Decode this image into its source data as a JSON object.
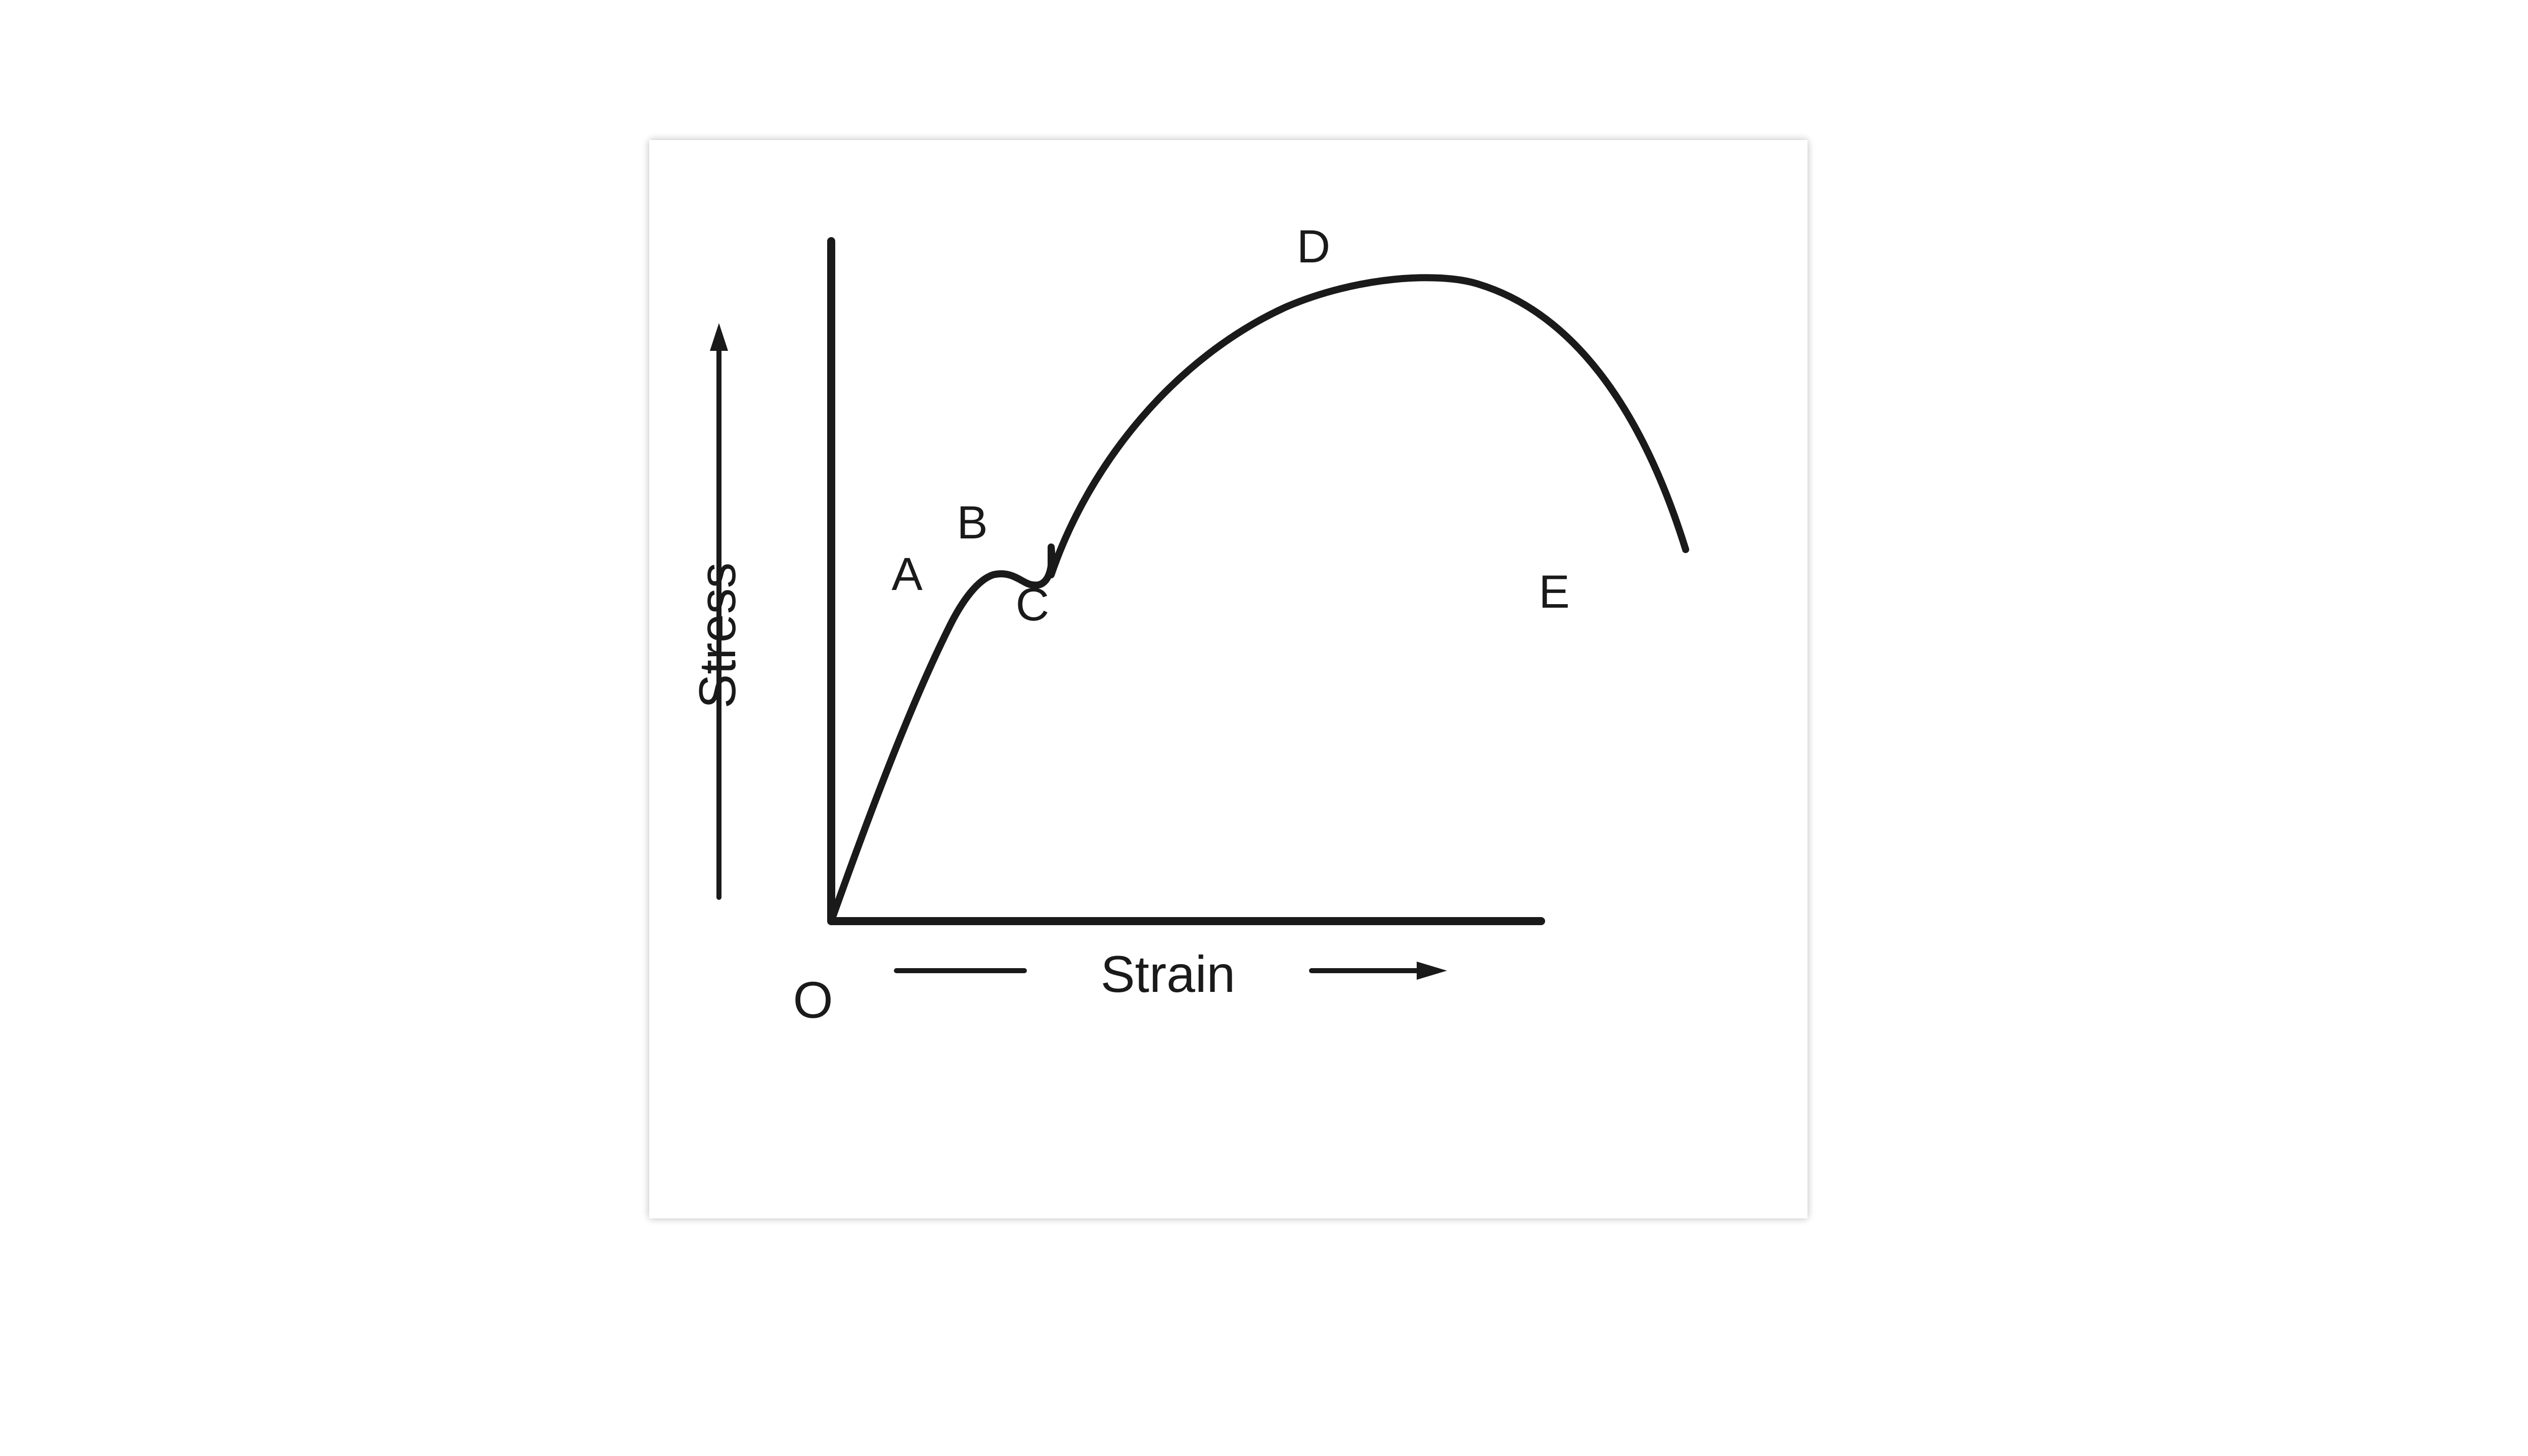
{
  "diagram": {
    "axes": {
      "y_label": "Stress",
      "x_label": "Strain",
      "origin_label": "O"
    },
    "points": {
      "a": "A",
      "b": "B",
      "c": "C",
      "d": "D",
      "e": "E"
    },
    "colors": {
      "ink": "#1a1a1a",
      "paper": "#ffffff"
    }
  }
}
